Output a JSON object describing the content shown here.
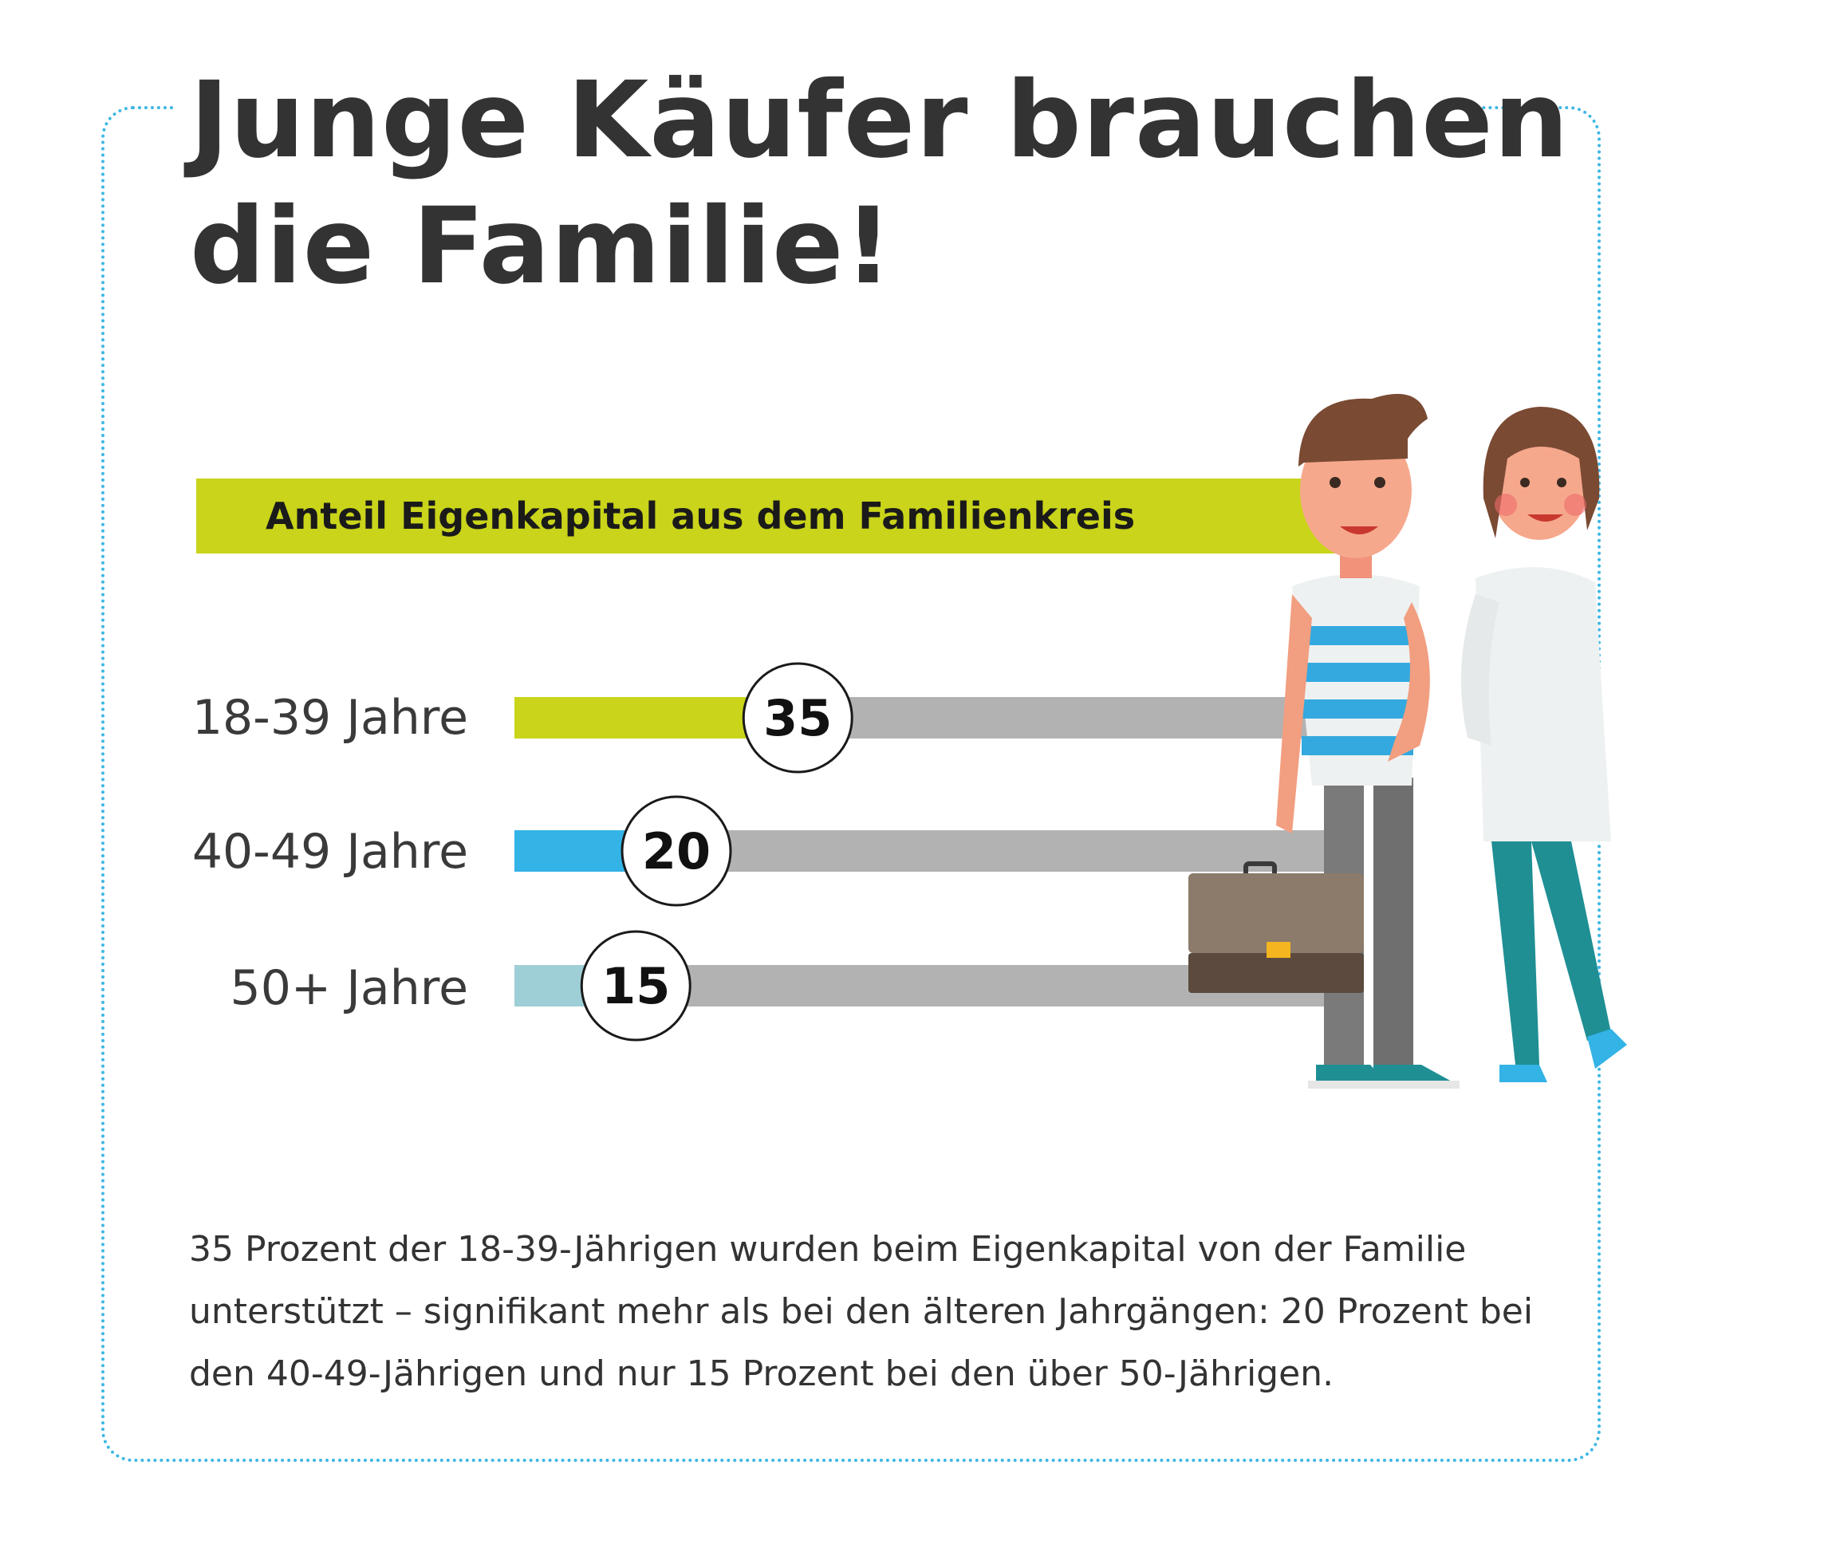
{
  "title": "Junge Käufer brauchen\ndie Familie!",
  "description": "35 Prozent der 18-39-Jährigen wurden beim Eigenkapital von der Familie unterstützt – signifikant mehr als bei den älteren Jahrgängen: 20 Prozent bei den 40-49-Jährigen und nur 15 Prozent bei den über 50-Jährigen.",
  "colors": {
    "frame": "#3db7e4",
    "banner": "#c9d41a",
    "track": "#b2b2b2",
    "text": "#333333"
  },
  "chart_data": {
    "type": "bar",
    "title": "Anteil Eigenkapital aus dem Familienkreis",
    "categories": [
      "18-39 Jahre",
      "40-49 Jahre",
      "50+ Jahre"
    ],
    "values": [
      35,
      20,
      15
    ],
    "colors": [
      "#c9d41a",
      "#33b3e6",
      "#9ecfd6"
    ],
    "unit": "Prozent",
    "xlim": [
      0,
      100
    ],
    "grid": false,
    "orientation": "horizontal"
  },
  "illustration": {
    "icons": [
      "man-illustration",
      "woman-illustration",
      "briefcase-icon"
    ]
  }
}
